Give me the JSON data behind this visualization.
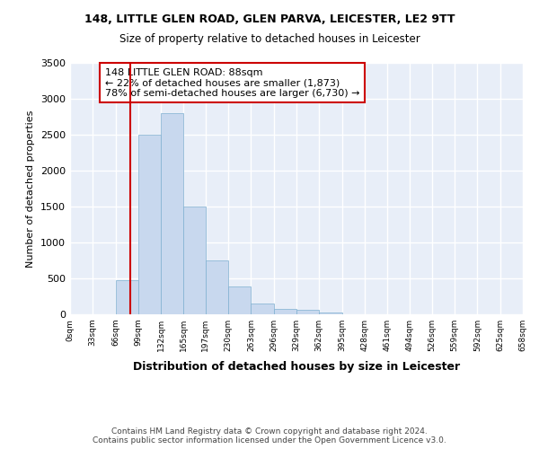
{
  "title1": "148, LITTLE GLEN ROAD, GLEN PARVA, LEICESTER, LE2 9TT",
  "title2": "Size of property relative to detached houses in Leicester",
  "xlabel": "Distribution of detached houses by size in Leicester",
  "ylabel": "Number of detached properties",
  "bin_edges": [
    0,
    33,
    66,
    99,
    132,
    165,
    197,
    230,
    263,
    296,
    329,
    362,
    395,
    428,
    461,
    494,
    526,
    559,
    592,
    625,
    658
  ],
  "bar_heights": [
    0,
    0,
    480,
    2500,
    2800,
    1500,
    750,
    390,
    150,
    80,
    60,
    20,
    5,
    0,
    0,
    0,
    0,
    0,
    0,
    0
  ],
  "bar_color": "#c8d8ee",
  "bar_edge_color": "#7fb0d0",
  "property_size": 88,
  "annotation_text": "148 LITTLE GLEN ROAD: 88sqm\n← 22% of detached houses are smaller (1,873)\n78% of semi-detached houses are larger (6,730) →",
  "annotation_box_color": "white",
  "annotation_box_edge_color": "#cc0000",
  "vline_color": "#cc0000",
  "ylim": [
    0,
    3500
  ],
  "yticks": [
    0,
    500,
    1000,
    1500,
    2000,
    2500,
    3000,
    3500
  ],
  "background_color": "#e8eef8",
  "grid_color": "white",
  "footer_text": "Contains HM Land Registry data © Crown copyright and database right 2024.\nContains public sector information licensed under the Open Government Licence v3.0.",
  "tick_labels": [
    "0sqm",
    "33sqm",
    "66sqm",
    "99sqm",
    "132sqm",
    "165sqm",
    "197sqm",
    "230sqm",
    "263sqm",
    "296sqm",
    "329sqm",
    "362sqm",
    "395sqm",
    "428sqm",
    "461sqm",
    "494sqm",
    "526sqm",
    "559sqm",
    "592sqm",
    "625sqm",
    "658sqm"
  ]
}
